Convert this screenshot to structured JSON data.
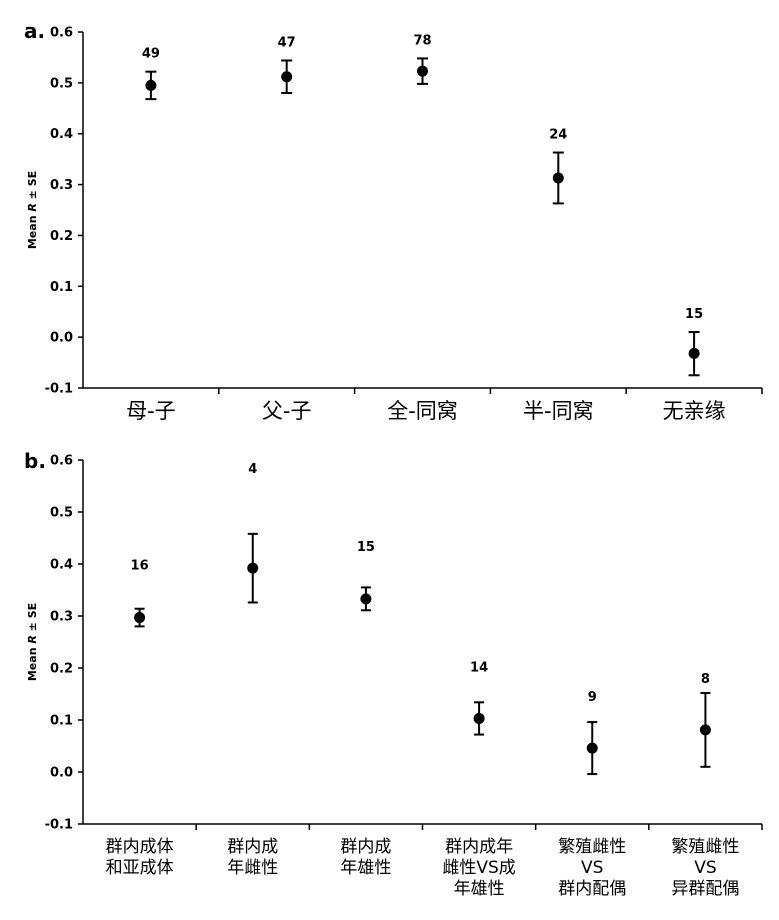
{
  "chart_data": [
    {
      "type": "scatter",
      "panel_label": "a.",
      "ylabel_prefix": "Mean ",
      "ylabel_italic": "R",
      "ylabel_suffix": " ± SE",
      "ylim": [
        -0.1,
        0.6
      ],
      "yticks": [
        "-0.1",
        "0.0",
        "0.1",
        "0.2",
        "0.3",
        "0.4",
        "0.5",
        "0.6"
      ],
      "categories": [
        [
          "母-子"
        ],
        [
          "父-子"
        ],
        [
          "全-同窝"
        ],
        [
          "半-同窝"
        ],
        [
          "无亲缘"
        ]
      ],
      "series": [
        {
          "values": [
            0.495,
            0.512,
            0.523,
            0.313,
            -0.032
          ],
          "err_low": [
            0.468,
            0.48,
            0.498,
            0.263,
            -0.075
          ],
          "err_high": [
            0.522,
            0.544,
            0.548,
            0.363,
            0.01
          ],
          "n": [
            "49",
            "47",
            "78",
            "24",
            "15"
          ]
        }
      ],
      "grid": false
    },
    {
      "type": "scatter",
      "panel_label": "b.",
      "ylabel_prefix": "Mean ",
      "ylabel_italic": "R",
      "ylabel_suffix": " ± SE",
      "ylim": [
        -0.1,
        0.6
      ],
      "yticks": [
        "-0.1",
        "0.0",
        "0.1",
        "0.2",
        "0.3",
        "0.4",
        "0.5",
        "0.6"
      ],
      "categories": [
        [
          "群内成体",
          "和亚成体"
        ],
        [
          "群内成",
          "年雌性"
        ],
        [
          "群内成",
          "年雄性"
        ],
        [
          "群内成年",
          "雌性VS成",
          "年雄性"
        ],
        [
          "繁殖雌性",
          "VS",
          "群内配偶"
        ],
        [
          "繁殖雌性",
          "VS",
          "异群配偶"
        ]
      ],
      "series": [
        {
          "values": [
            0.297,
            0.392,
            0.333,
            0.103,
            0.046,
            0.081
          ],
          "err_low": [
            0.28,
            0.326,
            0.311,
            0.072,
            -0.004,
            0.01
          ],
          "err_high": [
            0.314,
            0.458,
            0.355,
            0.134,
            0.096,
            0.152
          ],
          "n": [
            "16",
            "4",
            "15",
            "14",
            "9",
            "8"
          ]
        }
      ],
      "grid": false
    }
  ]
}
